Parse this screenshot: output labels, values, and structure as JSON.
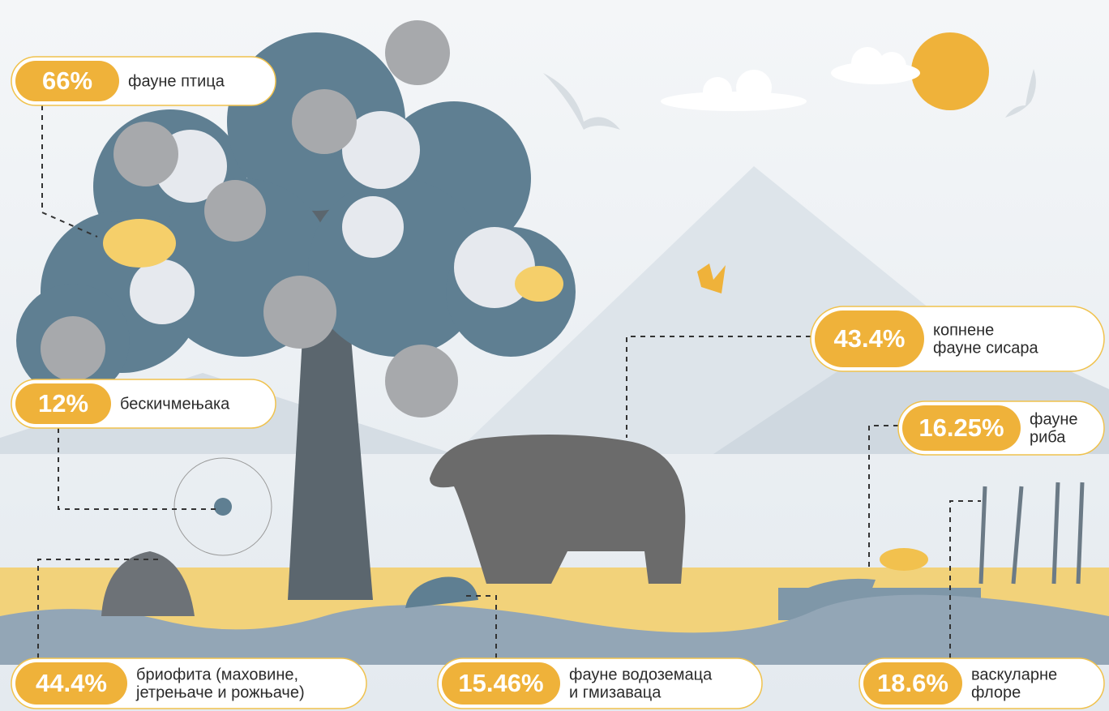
{
  "callouts": [
    {
      "value": "66%",
      "lines": [
        "фауне птица"
      ]
    },
    {
      "value": "12%",
      "lines": [
        "бескичмењака"
      ]
    },
    {
      "value": "43.4%",
      "lines": [
        "копнене",
        "фауне сисара"
      ]
    },
    {
      "value": "16.25%",
      "lines": [
        "фауне",
        "риба"
      ]
    },
    {
      "value": "44.4%",
      "lines": [
        "бриофита (маховине,",
        "јетрењаче и рожњаче)"
      ]
    },
    {
      "value": "15.46%",
      "lines": [
        "фауне водоземаца",
        "и гмизаваца"
      ]
    },
    {
      "value": "18.6%",
      "lines": [
        "васкуларне",
        "флоре"
      ]
    }
  ]
}
